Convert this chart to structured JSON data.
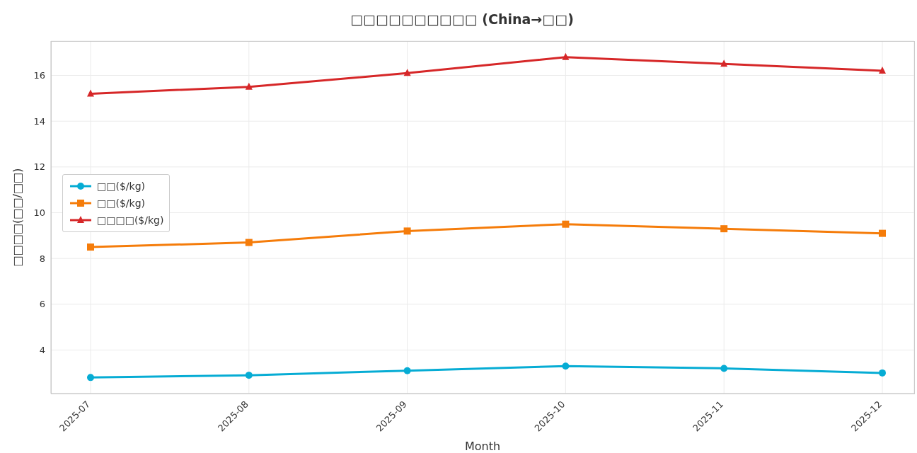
{
  "chart_data": {
    "type": "line",
    "title": "□□□□□□□□□□ (China→□□)",
    "xlabel": "Month",
    "ylabel": "□□□□(□□/□□)",
    "categories": [
      "2025-07",
      "2025-08",
      "2025-09",
      "2025-10",
      "2025-11",
      "2025-12"
    ],
    "series": [
      {
        "name": "□□($/kg)",
        "color": "#06acd4",
        "marker": "circle",
        "values": [
          2.8,
          2.9,
          3.1,
          3.3,
          3.2,
          3.0
        ]
      },
      {
        "name": "□□($/kg)",
        "color": "#f57c0a",
        "marker": "square",
        "values": [
          8.5,
          8.7,
          9.2,
          9.5,
          9.3,
          9.1
        ]
      },
      {
        "name": "□□□□($/kg)",
        "color": "#d62728",
        "marker": "triangle",
        "values": [
          15.2,
          15.5,
          16.1,
          16.8,
          16.5,
          16.2
        ]
      }
    ],
    "ylim": [
      2.1,
      17.5
    ],
    "yticks": [
      4,
      6,
      8,
      10,
      12,
      14,
      16
    ],
    "grid": true,
    "legend": "left",
    "line_style": "solid"
  }
}
